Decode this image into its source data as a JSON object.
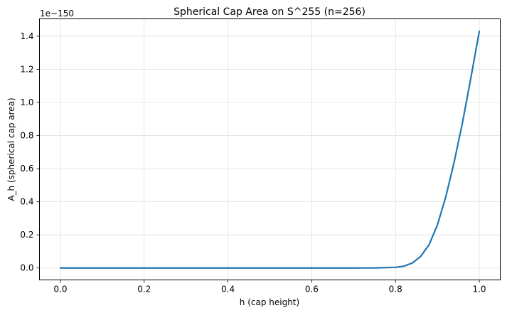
{
  "chart_data": {
    "type": "line",
    "title": "Spherical Cap Area on S^255 (n=256)",
    "xlabel": "h (cap height)",
    "ylabel": "A_h (spherical cap area)",
    "offset_text": "1e−150",
    "scale_exponent": -150,
    "xlim": [
      -0.05,
      1.05
    ],
    "ylim": [
      -0.072,
      1.505
    ],
    "x_ticks": [
      0.0,
      0.2,
      0.4,
      0.6,
      0.8,
      1.0
    ],
    "x_tick_labels": [
      "0.0",
      "0.2",
      "0.4",
      "0.6",
      "0.8",
      "1.0"
    ],
    "y_ticks": [
      0.0,
      0.2,
      0.4,
      0.6,
      0.8,
      1.0,
      1.2,
      1.4
    ],
    "y_tick_labels": [
      "0.0",
      "0.2",
      "0.4",
      "0.6",
      "0.8",
      "1.0",
      "1.2",
      "1.4"
    ],
    "grid": true,
    "legend": "none",
    "series": [
      {
        "color": "#1f77b4",
        "x": [
          0.0,
          0.1,
          0.2,
          0.3,
          0.4,
          0.5,
          0.6,
          0.7,
          0.75,
          0.8,
          0.82,
          0.84,
          0.86,
          0.88,
          0.9,
          0.92,
          0.94,
          0.96,
          0.98,
          1.0
        ],
        "y": [
          0.0,
          0.0,
          0.0,
          0.0,
          0.0,
          0.0,
          0.0,
          0.0,
          0.0005,
          0.004,
          0.011,
          0.03,
          0.07,
          0.14,
          0.26,
          0.43,
          0.64,
          0.88,
          1.15,
          1.43
        ]
      }
    ]
  }
}
